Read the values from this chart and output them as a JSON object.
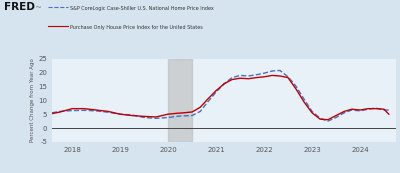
{
  "legend": [
    {
      "label": "S&P CoreLogic Case-Shiller U.S. National Home Price Index",
      "color": "#4472c4",
      "style": "dashed"
    },
    {
      "label": "Purchase Only House Price Index for the United States",
      "color": "#c00000",
      "style": "solid"
    }
  ],
  "ylabel": "Percent Change from Year Ago",
  "xlim_start": 2017.58,
  "xlim_end": 2024.75,
  "ylim": [
    -5,
    25
  ],
  "yticks": [
    -5,
    0,
    5,
    10,
    15,
    20,
    25
  ],
  "xticks": [
    2018,
    2019,
    2020,
    2021,
    2022,
    2023,
    2024
  ],
  "shaded_region": [
    2020.0,
    2020.5
  ],
  "background_color": "#d6e4f0",
  "plot_bg_color": "#e8f0f8",
  "zero_line_color": "#444444",
  "case_shiller": {
    "x": [
      2017.58,
      2017.75,
      2018.0,
      2018.25,
      2018.5,
      2018.75,
      2019.0,
      2019.25,
      2019.5,
      2019.75,
      2020.0,
      2020.17,
      2020.33,
      2020.5,
      2020.67,
      2020.83,
      2021.0,
      2021.17,
      2021.33,
      2021.5,
      2021.67,
      2021.83,
      2022.0,
      2022.17,
      2022.33,
      2022.5,
      2022.67,
      2022.83,
      2023.0,
      2023.17,
      2023.33,
      2023.5,
      2023.67,
      2023.83,
      2024.0,
      2024.17,
      2024.33,
      2024.5,
      2024.6
    ],
    "y": [
      5.5,
      6.0,
      6.3,
      6.4,
      6.2,
      5.7,
      5.0,
      4.7,
      3.8,
      3.5,
      3.8,
      4.2,
      4.4,
      4.5,
      6.0,
      9.5,
      13.0,
      16.0,
      18.2,
      19.0,
      18.8,
      19.2,
      19.8,
      20.6,
      20.8,
      18.5,
      15.0,
      10.5,
      6.0,
      3.5,
      2.5,
      3.8,
      5.5,
      6.5,
      6.2,
      6.8,
      7.2,
      6.5,
      6.5
    ]
  },
  "purchase_only": {
    "x": [
      2017.58,
      2017.75,
      2018.0,
      2018.25,
      2018.5,
      2018.75,
      2019.0,
      2019.25,
      2019.5,
      2019.75,
      2020.0,
      2020.17,
      2020.33,
      2020.5,
      2020.67,
      2020.83,
      2021.0,
      2021.17,
      2021.33,
      2021.5,
      2021.67,
      2021.83,
      2022.0,
      2022.17,
      2022.33,
      2022.5,
      2022.67,
      2022.83,
      2023.0,
      2023.17,
      2023.33,
      2023.5,
      2023.67,
      2023.83,
      2024.0,
      2024.17,
      2024.33,
      2024.5,
      2024.6
    ],
    "y": [
      5.2,
      5.8,
      7.0,
      7.0,
      6.5,
      6.0,
      5.0,
      4.5,
      4.2,
      4.0,
      5.0,
      5.3,
      5.5,
      5.8,
      7.5,
      10.5,
      13.5,
      16.0,
      17.5,
      18.0,
      17.8,
      18.2,
      18.5,
      19.0,
      18.8,
      18.2,
      14.0,
      9.5,
      5.5,
      3.2,
      3.0,
      4.5,
      6.0,
      6.8,
      6.5,
      7.0,
      7.0,
      6.8,
      5.0
    ]
  }
}
